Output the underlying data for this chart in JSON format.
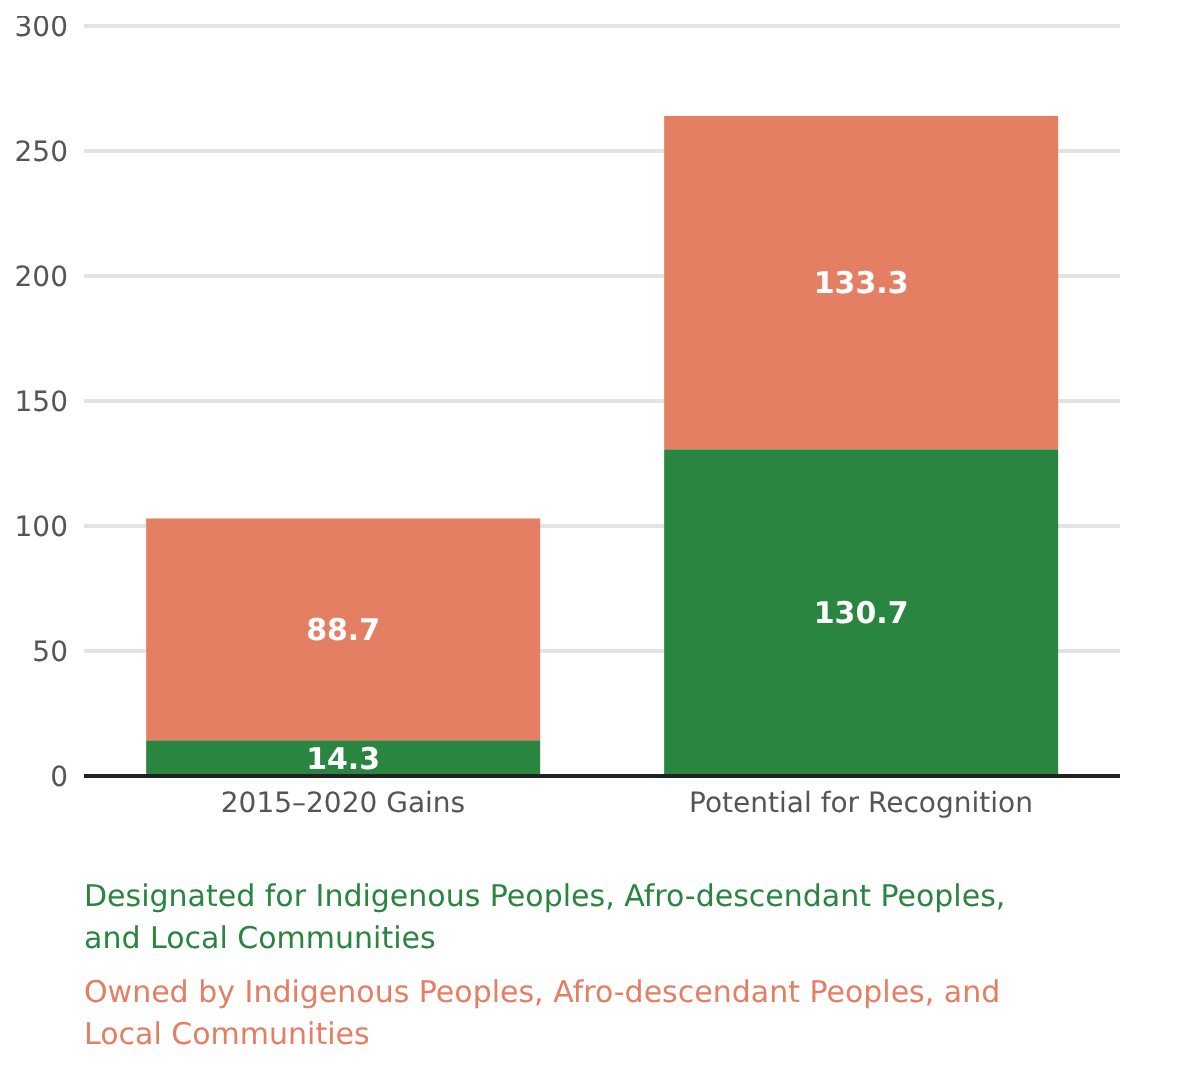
{
  "chart_data": {
    "type": "bar",
    "stacked": true,
    "categories": [
      "2015–2020 Gains",
      "Potential for Recognition"
    ],
    "series": [
      {
        "name": "Designated for Indigenous Peoples, Afro-descendant Peoples, and Local Communities",
        "color": "#2a8540",
        "values": [
          14.3,
          130.7
        ]
      },
      {
        "name": "Owned by Indigenous Peoples, Afro-descendant Peoples, and Local Communities",
        "color": "#e57f63",
        "values": [
          88.7,
          133.3
        ]
      }
    ],
    "ylim": [
      0,
      300
    ],
    "yticks": [
      0,
      50,
      100,
      150,
      200,
      250,
      300
    ],
    "grid": "y",
    "legend": "bottom",
    "data_labels": true
  }
}
